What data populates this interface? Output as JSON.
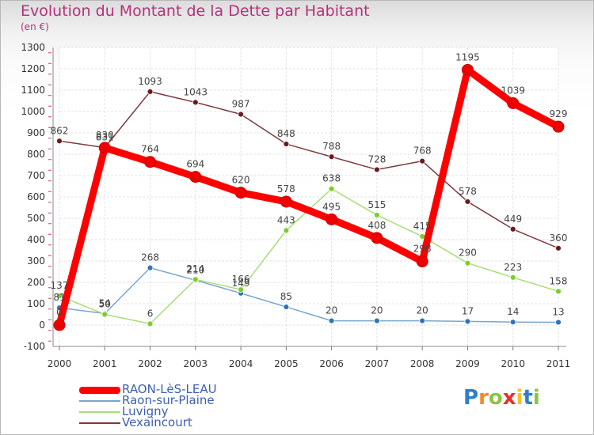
{
  "title": "Evolution du Montant de la Dette par Habitant",
  "subtitle": "(en €)",
  "logo": {
    "text": "Proxiti",
    "letters": [
      {
        "ch": "P",
        "color": "#2f7fc8"
      },
      {
        "ch": "r",
        "color": "#f08a22"
      },
      {
        "ch": "o",
        "color": "#8bc53f"
      },
      {
        "ch": "x",
        "color": "#e2322a"
      },
      {
        "ch": "i",
        "color": "#f2c12e"
      },
      {
        "ch": "t",
        "color": "#2f7fc8"
      },
      {
        "ch": "i",
        "color": "#8bc53f"
      }
    ]
  },
  "chart_data": {
    "type": "line",
    "x": [
      "2000",
      "2001",
      "2002",
      "2003",
      "2004",
      "2005",
      "2006",
      "2007",
      "2008",
      "2009",
      "2010",
      "2011"
    ],
    "ylim": [
      -100,
      1300
    ],
    "yticks": [
      -100,
      0,
      100,
      200,
      300,
      400,
      500,
      600,
      700,
      800,
      900,
      1000,
      1100,
      1200,
      1300
    ],
    "grid": true,
    "legend_position": "bottom-left",
    "series": [
      {
        "name": "RAON-LèS-LEAU",
        "color": "#ee0000",
        "line_color": "#ff0000",
        "values": [
          0,
          830,
          764,
          694,
          620,
          578,
          495,
          408,
          298,
          1195,
          1039,
          929
        ]
      },
      {
        "name": "Raon-sur-Plaine",
        "color": "#2e75b6",
        "line_color": "#79a6cf",
        "values": [
          81,
          54,
          268,
          210,
          149,
          85,
          20,
          20,
          20,
          17,
          14,
          13
        ]
      },
      {
        "name": "Luvigny",
        "color": "#7ccc2e",
        "line_color": "#a7de76",
        "values": [
          137,
          50,
          6,
          214,
          166,
          443,
          638,
          515,
          415,
          290,
          223,
          158
        ]
      },
      {
        "name": "Vexaincourt",
        "color": "#6b1a1f",
        "line_color": "#7d3a3e",
        "values": [
          862,
          831,
          1093,
          1043,
          987,
          848,
          788,
          728,
          768,
          578,
          449,
          360
        ]
      }
    ]
  }
}
